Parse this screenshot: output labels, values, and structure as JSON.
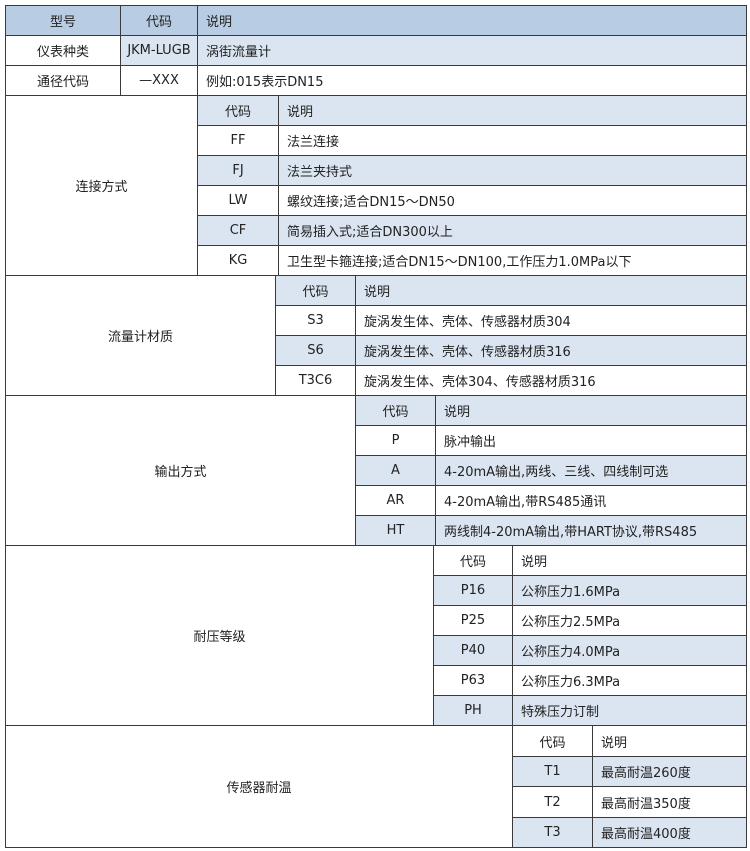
{
  "top": {
    "header": [
      "型号",
      "代码",
      "说明"
    ],
    "rows": [
      [
        "仪表种类",
        "JKM-LUGB",
        "涡街流量计"
      ],
      [
        "通径代码",
        "—XXX",
        "例如:015表示DN15"
      ]
    ]
  },
  "colors": {
    "header": "#b8cce4",
    "shaded": "#dbe5f1",
    "border": "#3a3a3a"
  },
  "sections": [
    {
      "label": "连接方式",
      "code_header": "代码",
      "desc_header": "说明",
      "rows": [
        {
          "code": "FF",
          "desc": "法兰连接"
        },
        {
          "code": "FJ",
          "desc": "法兰夹持式"
        },
        {
          "code": "LW",
          "desc": "螺纹连接;适合DN15～DN50"
        },
        {
          "code": "CF",
          "desc": "简易插入式;适合DN300以上"
        },
        {
          "code": "KG",
          "desc": "卫生型卡箍连接;适合DN15～DN100,工作压力1.0MPa以下"
        }
      ]
    },
    {
      "label": "流量计材质",
      "code_header": "代码",
      "desc_header": "说明",
      "rows": [
        {
          "code": "S3",
          "desc": "旋涡发生体、壳体、传感器材质304"
        },
        {
          "code": "S6",
          "desc": "旋涡发生体、壳体、传感器材质316"
        },
        {
          "code": "T3C6",
          "desc": "旋涡发生体、壳体304、传感器材质316"
        }
      ]
    },
    {
      "label": "输出方式",
      "code_header": "代码",
      "desc_header": "说明",
      "rows": [
        {
          "code": "P",
          "desc": "脉冲输出"
        },
        {
          "code": "A",
          "desc": "4-20mA输出,两线、三线、四线制可选"
        },
        {
          "code": "AR",
          "desc": "4-20mA输出,带RS485通讯"
        },
        {
          "code": "HT",
          "desc": "两线制4-20mA输出,带HART协议,带RS485"
        }
      ]
    },
    {
      "label": "耐压等级",
      "code_header": "代码",
      "desc_header": "说明",
      "rows": [
        {
          "code": "P16",
          "desc": "公称压力1.6MPa"
        },
        {
          "code": "P25",
          "desc": "公称压力2.5MPa"
        },
        {
          "code": "P40",
          "desc": "公称压力4.0MPa"
        },
        {
          "code": "P63",
          "desc": "公称压力6.3MPa"
        },
        {
          "code": "PH",
          "desc": "特殊压力订制"
        }
      ]
    },
    {
      "label": "传感器耐温",
      "code_header": "代码",
      "desc_header": "说明",
      "rows": [
        {
          "code": "T1",
          "desc": "最高耐温260度"
        },
        {
          "code": "T2",
          "desc": "最高耐温350度"
        },
        {
          "code": "T3",
          "desc": "最高耐温400度"
        }
      ]
    }
  ]
}
